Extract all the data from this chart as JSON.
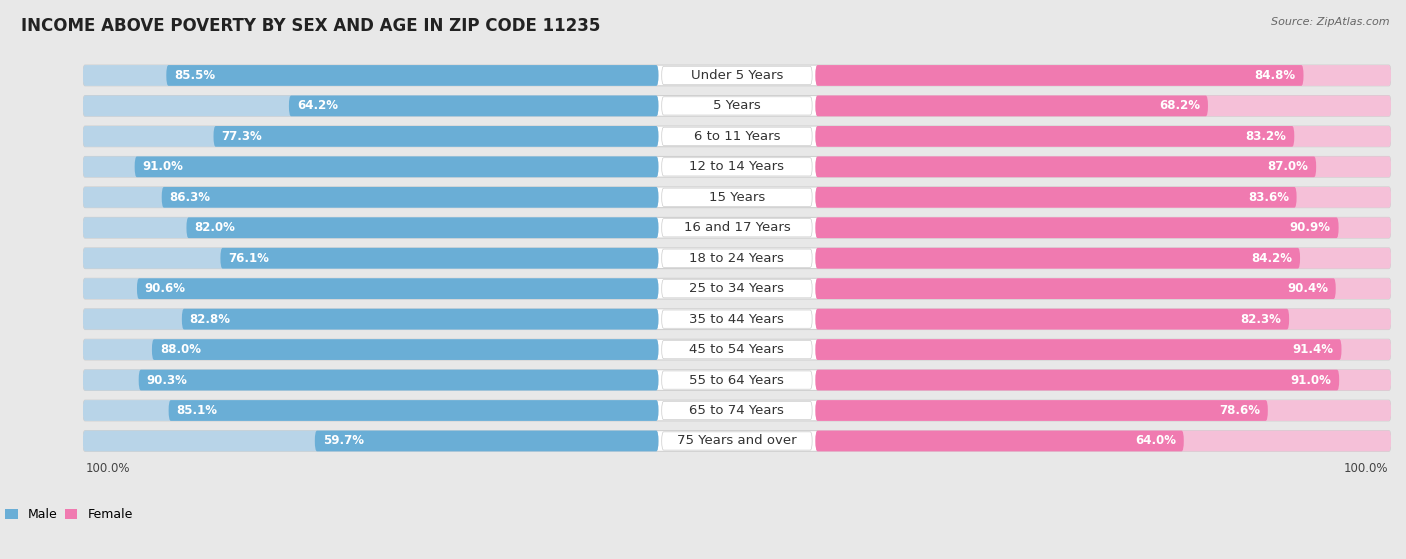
{
  "title": "INCOME ABOVE POVERTY BY SEX AND AGE IN ZIP CODE 11235",
  "source": "Source: ZipAtlas.com",
  "categories": [
    "Under 5 Years",
    "5 Years",
    "6 to 11 Years",
    "12 to 14 Years",
    "15 Years",
    "16 and 17 Years",
    "18 to 24 Years",
    "25 to 34 Years",
    "35 to 44 Years",
    "45 to 54 Years",
    "55 to 64 Years",
    "65 to 74 Years",
    "75 Years and over"
  ],
  "male_values": [
    85.5,
    64.2,
    77.3,
    91.0,
    86.3,
    82.0,
    76.1,
    90.6,
    82.8,
    88.0,
    90.3,
    85.1,
    59.7
  ],
  "female_values": [
    84.8,
    68.2,
    83.2,
    87.0,
    83.6,
    90.9,
    84.2,
    90.4,
    82.3,
    91.4,
    91.0,
    78.6,
    64.0
  ],
  "male_color_dark": "#6aaed6",
  "male_color_light": "#b8d4e8",
  "female_color_dark": "#f07ab0",
  "female_color_light": "#f5c0d8",
  "background_color": "#e8e8e8",
  "row_bg_color": "#ffffff",
  "title_fontsize": 12,
  "label_fontsize": 9.5,
  "value_fontsize": 8.5,
  "max_value": 100.0
}
